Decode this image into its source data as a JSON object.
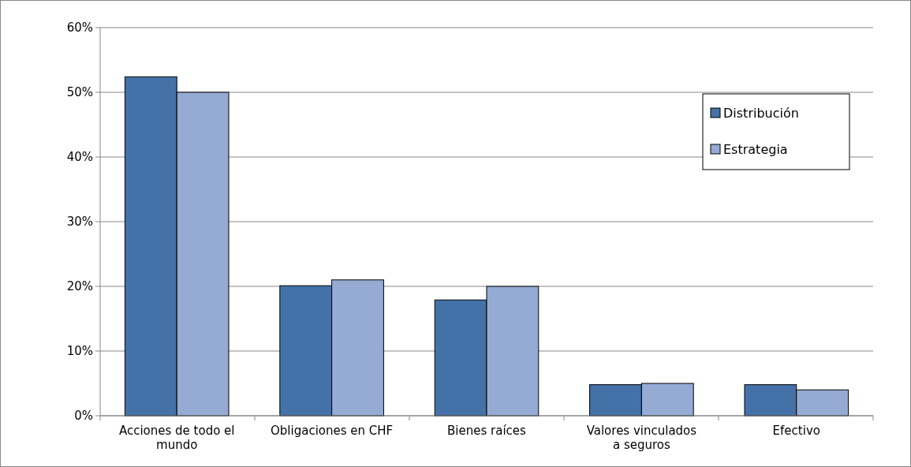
{
  "chart_data": {
    "type": "bar",
    "categories": [
      "Acciones de todo el mundo",
      "Obligaciones en CHF",
      "Bienes raíces",
      "Valores vinculados a seguros",
      "Efectivo"
    ],
    "series": [
      {
        "name": "Distribución",
        "color": "#4472a8",
        "values": [
          52.4,
          20.1,
          17.9,
          4.8,
          4.8
        ]
      },
      {
        "name": "Estrategia",
        "color": "#95abd4",
        "values": [
          50,
          21,
          20,
          5,
          4
        ]
      }
    ],
    "ylim": [
      0,
      60
    ],
    "yticks": [
      {
        "value": 0,
        "label": "0%"
      },
      {
        "value": 10,
        "label": "10%"
      },
      {
        "value": 20,
        "label": "20%"
      },
      {
        "value": 30,
        "label": "30%"
      },
      {
        "value": 40,
        "label": "40%"
      },
      {
        "value": 50,
        "label": "50%"
      },
      {
        "value": 60,
        "label": "60%"
      }
    ],
    "grid": "y",
    "legend": "top right"
  }
}
